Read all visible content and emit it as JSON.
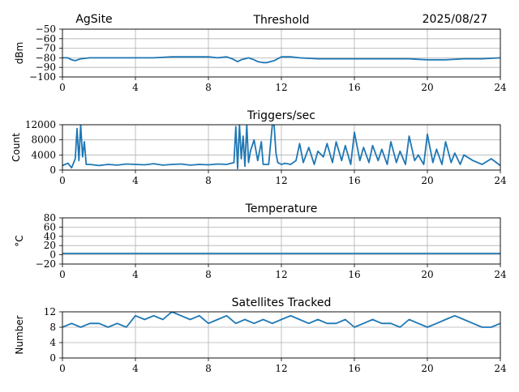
{
  "header": {
    "site": "AgSite",
    "date": "2025/08/27"
  },
  "colors": {
    "line": "#1f77b4",
    "grid": "#b0b0b0",
    "axis": "#000000"
  },
  "chart_data": [
    {
      "type": "line",
      "title": "Threshold",
      "xlabel": "",
      "ylabel": "dBm",
      "xlim": [
        0,
        24
      ],
      "ylim": [
        -100,
        -50
      ],
      "xticks": [
        "0",
        "4",
        "8",
        "12",
        "16",
        "20",
        "24"
      ],
      "yticks": [
        "-50",
        "-60",
        "-70",
        "-80",
        "-90",
        "-100"
      ],
      "grid": true,
      "series": [
        {
          "x": [
            0,
            0.3,
            0.5,
            0.7,
            1.0,
            1.5,
            2.0,
            3.0,
            4.0,
            5.0,
            6.0,
            7.0,
            8.0,
            8.5,
            9.0,
            9.3,
            9.6,
            9.8,
            10.0,
            10.2,
            10.5,
            10.7,
            11.0,
            11.2,
            11.4,
            11.6,
            11.8,
            12.0,
            12.5,
            13.0,
            14.0,
            15.0,
            16.0,
            17.0,
            18.0,
            19.0,
            20.0,
            21.0,
            22.0,
            23.0,
            24.0
          ],
          "y": [
            -80,
            -80,
            -82,
            -83,
            -81,
            -80,
            -80,
            -80,
            -80,
            -80,
            -79,
            -79,
            -79,
            -80,
            -79,
            -81,
            -84,
            -82,
            -81,
            -80,
            -82,
            -84,
            -85,
            -85,
            -84,
            -83,
            -81,
            -79,
            -79,
            -80,
            -81,
            -81,
            -81,
            -81,
            -81,
            -81,
            -82,
            -82,
            -81,
            -81,
            -80
          ]
        }
      ]
    },
    {
      "type": "line",
      "title": "Triggers/sec",
      "xlabel": "",
      "ylabel": "Count",
      "xlim": [
        0,
        24
      ],
      "ylim": [
        0,
        12000
      ],
      "xticks": [
        "0",
        "4",
        "8",
        "12",
        "16",
        "20",
        "24"
      ],
      "yticks": [
        "0",
        "4000",
        "8000",
        "12000"
      ],
      "grid": true,
      "series": [
        {
          "x": [
            0,
            0.3,
            0.5,
            0.7,
            0.8,
            0.9,
            1.0,
            1.1,
            1.2,
            1.3,
            1.5,
            2.0,
            2.5,
            3.0,
            3.5,
            4.0,
            4.5,
            5.0,
            5.5,
            6.0,
            6.5,
            7.0,
            7.5,
            8.0,
            8.5,
            9.0,
            9.4,
            9.5,
            9.6,
            9.7,
            9.8,
            9.9,
            10.0,
            10.1,
            10.2,
            10.3,
            10.5,
            10.7,
            10.9,
            11.0,
            11.3,
            11.5,
            11.6,
            11.7,
            11.8,
            12.0,
            12.2,
            12.5,
            12.8,
            13.0,
            13.2,
            13.5,
            13.8,
            14.0,
            14.3,
            14.5,
            14.8,
            15.0,
            15.3,
            15.5,
            15.8,
            16.0,
            16.3,
            16.5,
            16.8,
            17.0,
            17.3,
            17.5,
            17.8,
            18.0,
            18.3,
            18.5,
            18.8,
            19.0,
            19.3,
            19.5,
            19.8,
            20.0,
            20.3,
            20.5,
            20.8,
            21.0,
            21.3,
            21.5,
            21.8,
            22.0,
            22.5,
            23.0,
            23.5,
            24.0
          ],
          "y": [
            1200,
            1800,
            600,
            3000,
            11000,
            2500,
            12000,
            3500,
            7500,
            1500,
            1500,
            1200,
            1500,
            1300,
            1600,
            1500,
            1400,
            1700,
            1300,
            1500,
            1600,
            1300,
            1500,
            1400,
            1600,
            1500,
            2000,
            11500,
            400,
            12000,
            3000,
            9000,
            1000,
            12000,
            2000,
            5000,
            8000,
            2500,
            7500,
            1500,
            1500,
            12000,
            12000,
            4500,
            2000,
            1500,
            1800,
            1500,
            2500,
            7000,
            2000,
            6000,
            1500,
            5000,
            3500,
            7000,
            2000,
            7500,
            2500,
            6500,
            1500,
            10000,
            2500,
            6000,
            2000,
            6500,
            2500,
            5500,
            1500,
            7500,
            2000,
            5000,
            1500,
            9000,
            2500,
            4000,
            1500,
            9500,
            2000,
            5500,
            1500,
            7500,
            2000,
            4500,
            1500,
            4000,
            2500,
            1500,
            3000,
            1200
          ]
        }
      ]
    },
    {
      "type": "line",
      "title": "Temperature",
      "xlabel": "",
      "ylabel": "°C",
      "xlim": [
        0,
        24
      ],
      "ylim": [
        -20,
        80
      ],
      "xticks": [
        "0",
        "4",
        "8",
        "12",
        "16",
        "20",
        "24"
      ],
      "yticks": [
        "-20",
        "0",
        "20",
        "40",
        "60",
        "80"
      ],
      "grid": true,
      "series": [
        {
          "x": [
            0,
            24
          ],
          "y": [
            3,
            3
          ]
        }
      ]
    },
    {
      "type": "line",
      "title": "Satellites Tracked",
      "xlabel": "",
      "ylabel": "Number",
      "xlim": [
        0,
        24
      ],
      "ylim": [
        0,
        12
      ],
      "xticks": [
        "0",
        "4",
        "8",
        "12",
        "16",
        "20",
        "24"
      ],
      "yticks": [
        "0",
        "4",
        "8",
        "12"
      ],
      "grid": true,
      "series": [
        {
          "x": [
            0,
            0.5,
            1.0,
            1.5,
            2.0,
            2.5,
            3.0,
            3.5,
            4.0,
            4.5,
            5.0,
            5.5,
            6.0,
            6.5,
            7.0,
            7.5,
            8.0,
            8.5,
            9.0,
            9.5,
            10.0,
            10.5,
            11.0,
            11.5,
            12.0,
            12.5,
            13.0,
            13.5,
            14.0,
            14.5,
            15.0,
            15.5,
            16.0,
            16.5,
            17.0,
            17.5,
            18.0,
            18.5,
            19.0,
            19.5,
            20.0,
            20.5,
            21.0,
            21.5,
            22.0,
            22.5,
            23.0,
            23.5,
            24.0
          ],
          "y": [
            8,
            9,
            8,
            9,
            9,
            8,
            9,
            8,
            11,
            10,
            11,
            10,
            12,
            11,
            10,
            11,
            9,
            10,
            11,
            9,
            10,
            9,
            10,
            9,
            10,
            11,
            10,
            9,
            10,
            9,
            9,
            10,
            8,
            9,
            10,
            9,
            9,
            8,
            10,
            9,
            8,
            9,
            10,
            11,
            10,
            9,
            8,
            8,
            9
          ]
        }
      ]
    }
  ]
}
